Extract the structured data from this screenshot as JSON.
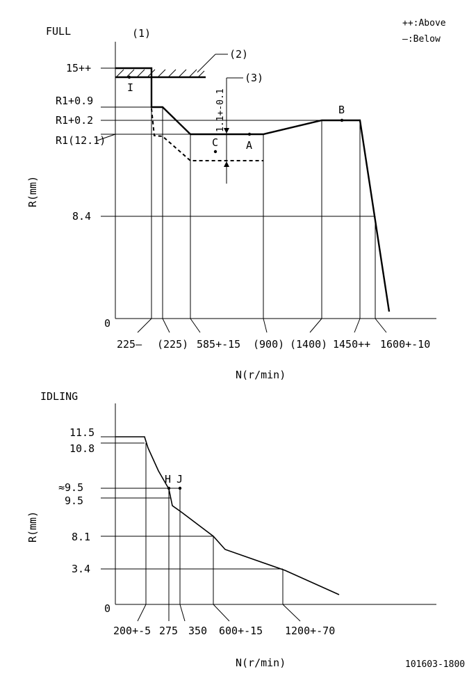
{
  "legend": {
    "above": "++:Above",
    "below": "—:Below"
  },
  "doc_number": "101603-1800",
  "full": {
    "title": "FULL",
    "callout_1": "(1)",
    "callout_2": "(2)",
    "callout_3": "(3)",
    "y_axis_label": "R(mm)",
    "x_axis_label": "N(r/min)",
    "y_labels": [
      "15++",
      "R1+0.9",
      "R1+0.2",
      "R1(12.1)",
      "8.4",
      "0"
    ],
    "x_labels": [
      "225—",
      "(225)",
      "585+-15",
      "(900)",
      "(1400)",
      "1450++",
      "1600+-10"
    ],
    "tolerance": "1.1+-0.1",
    "points": [
      "I",
      "C",
      "A",
      "B"
    ]
  },
  "idling": {
    "title": "IDLING",
    "y_axis_label": "R(mm)",
    "x_axis_label": "N(r/min)",
    "y_labels": [
      "11.5",
      "10.8",
      "≈9.5",
      "9.5",
      "8.1",
      "3.4",
      "0"
    ],
    "x_labels": [
      "200+-5",
      "275",
      "350",
      "600+-15",
      "1200+-70"
    ],
    "points": [
      "H",
      "J"
    ]
  }
}
